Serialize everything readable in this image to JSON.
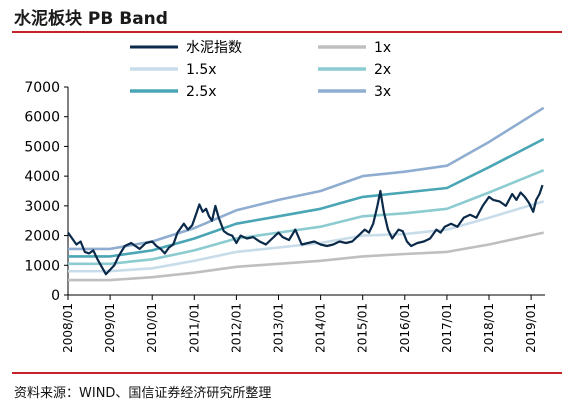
{
  "title": "水泥板块 PB Band",
  "source": "资料来源：WIND、国信证券经济研究所整理",
  "chart_data": {
    "type": "line",
    "title": "水泥板块 PB Band",
    "xlabel": "",
    "ylabel": "",
    "ylim": [
      0,
      7000
    ],
    "yticks": [
      0,
      1000,
      2000,
      3000,
      4000,
      5000,
      6000,
      7000
    ],
    "yticklabels": [
      "0",
      "1000",
      "2000",
      "3000",
      "4000",
      "5000",
      "6000",
      "7000"
    ],
    "xlim": [
      2008.0,
      2019.33
    ],
    "xticks": [
      2008,
      2009,
      2010,
      2011,
      2012,
      2013,
      2014,
      2015,
      2016,
      2017,
      2018,
      2019
    ],
    "xticklabels": [
      "2008/01",
      "2009/01",
      "2010/01",
      "2011/01",
      "2012/01",
      "2013/01",
      "2014/01",
      "2015/01",
      "2016/01",
      "2017/01",
      "2018/01",
      "2019/01"
    ],
    "grid": false,
    "legend_position": "top",
    "series": [
      {
        "name": "水泥指数",
        "color": "#0b2a4a",
        "points": [
          [
            2008.0,
            2100
          ],
          [
            2008.1,
            1900
          ],
          [
            2008.2,
            1700
          ],
          [
            2008.3,
            1800
          ],
          [
            2008.4,
            1450
          ],
          [
            2008.5,
            1400
          ],
          [
            2008.6,
            1500
          ],
          [
            2008.7,
            1200
          ],
          [
            2008.8,
            950
          ],
          [
            2008.9,
            700
          ],
          [
            2009.0,
            850
          ],
          [
            2009.1,
            1000
          ],
          [
            2009.2,
            1300
          ],
          [
            2009.35,
            1650
          ],
          [
            2009.5,
            1750
          ],
          [
            2009.6,
            1650
          ],
          [
            2009.7,
            1550
          ],
          [
            2009.85,
            1750
          ],
          [
            2010.0,
            1800
          ],
          [
            2010.1,
            1650
          ],
          [
            2010.2,
            1550
          ],
          [
            2010.3,
            1400
          ],
          [
            2010.4,
            1600
          ],
          [
            2010.5,
            1700
          ],
          [
            2010.6,
            2100
          ],
          [
            2010.75,
            2400
          ],
          [
            2010.85,
            2200
          ],
          [
            2010.95,
            2350
          ],
          [
            2011.05,
            2750
          ],
          [
            2011.12,
            3050
          ],
          [
            2011.2,
            2800
          ],
          [
            2011.28,
            2900
          ],
          [
            2011.35,
            2650
          ],
          [
            2011.42,
            2500
          ],
          [
            2011.5,
            3000
          ],
          [
            2011.58,
            2600
          ],
          [
            2011.7,
            2150
          ],
          [
            2011.8,
            2050
          ],
          [
            2011.9,
            2000
          ],
          [
            2012.0,
            1750
          ],
          [
            2012.1,
            2000
          ],
          [
            2012.25,
            1900
          ],
          [
            2012.4,
            1950
          ],
          [
            2012.55,
            1800
          ],
          [
            2012.7,
            1700
          ],
          [
            2012.85,
            1900
          ],
          [
            2013.0,
            2100
          ],
          [
            2013.1,
            1950
          ],
          [
            2013.25,
            1850
          ],
          [
            2013.4,
            2200
          ],
          [
            2013.55,
            1700
          ],
          [
            2013.7,
            1750
          ],
          [
            2013.85,
            1800
          ],
          [
            2014.0,
            1700
          ],
          [
            2014.15,
            1650
          ],
          [
            2014.3,
            1700
          ],
          [
            2014.45,
            1800
          ],
          [
            2014.6,
            1750
          ],
          [
            2014.75,
            1800
          ],
          [
            2014.9,
            2000
          ],
          [
            2015.05,
            2200
          ],
          [
            2015.15,
            2100
          ],
          [
            2015.25,
            2400
          ],
          [
            2015.35,
            3000
          ],
          [
            2015.42,
            3500
          ],
          [
            2015.5,
            2800
          ],
          [
            2015.6,
            2200
          ],
          [
            2015.7,
            1900
          ],
          [
            2015.85,
            2200
          ],
          [
            2015.95,
            2150
          ],
          [
            2016.05,
            1800
          ],
          [
            2016.15,
            1650
          ],
          [
            2016.3,
            1750
          ],
          [
            2016.45,
            1800
          ],
          [
            2016.6,
            1900
          ],
          [
            2016.75,
            2200
          ],
          [
            2016.85,
            2100
          ],
          [
            2016.95,
            2300
          ],
          [
            2017.1,
            2400
          ],
          [
            2017.25,
            2300
          ],
          [
            2017.4,
            2600
          ],
          [
            2017.55,
            2700
          ],
          [
            2017.7,
            2600
          ],
          [
            2017.85,
            3000
          ],
          [
            2018.0,
            3300
          ],
          [
            2018.1,
            3200
          ],
          [
            2018.25,
            3150
          ],
          [
            2018.4,
            3000
          ],
          [
            2018.55,
            3400
          ],
          [
            2018.65,
            3200
          ],
          [
            2018.75,
            3450
          ],
          [
            2018.85,
            3300
          ],
          [
            2018.95,
            3100
          ],
          [
            2019.05,
            2800
          ],
          [
            2019.12,
            3200
          ],
          [
            2019.2,
            3400
          ],
          [
            2019.27,
            3700
          ]
        ]
      },
      {
        "name": "1x",
        "color": "#bfbfbf",
        "points": [
          [
            2008.0,
            500
          ],
          [
            2009.0,
            500
          ],
          [
            2010.0,
            600
          ],
          [
            2011.0,
            750
          ],
          [
            2012.0,
            950
          ],
          [
            2013.0,
            1050
          ],
          [
            2014.0,
            1150
          ],
          [
            2015.0,
            1300
          ],
          [
            2016.0,
            1380
          ],
          [
            2017.0,
            1450
          ],
          [
            2018.0,
            1700
          ],
          [
            2019.3,
            2100
          ]
        ]
      },
      {
        "name": "1.5x",
        "color": "#c8dcea",
        "points": [
          [
            2008.0,
            800
          ],
          [
            2009.0,
            800
          ],
          [
            2010.0,
            900
          ],
          [
            2011.0,
            1150
          ],
          [
            2012.0,
            1450
          ],
          [
            2013.0,
            1600
          ],
          [
            2014.0,
            1750
          ],
          [
            2015.0,
            2000
          ],
          [
            2016.0,
            2050
          ],
          [
            2017.0,
            2200
          ],
          [
            2018.0,
            2600
          ],
          [
            2019.3,
            3150
          ]
        ]
      },
      {
        "name": "2x",
        "color": "#8ccbd0",
        "points": [
          [
            2008.0,
            1050
          ],
          [
            2009.0,
            1050
          ],
          [
            2010.0,
            1200
          ],
          [
            2011.0,
            1500
          ],
          [
            2012.0,
            1900
          ],
          [
            2013.0,
            2100
          ],
          [
            2014.0,
            2300
          ],
          [
            2015.0,
            2650
          ],
          [
            2016.0,
            2750
          ],
          [
            2017.0,
            2900
          ],
          [
            2018.0,
            3450
          ],
          [
            2019.3,
            4200
          ]
        ]
      },
      {
        "name": "2.5x",
        "color": "#4aa5b5",
        "points": [
          [
            2008.0,
            1300
          ],
          [
            2009.0,
            1300
          ],
          [
            2010.0,
            1500
          ],
          [
            2011.0,
            1900
          ],
          [
            2012.0,
            2400
          ],
          [
            2013.0,
            2650
          ],
          [
            2014.0,
            2900
          ],
          [
            2015.0,
            3300
          ],
          [
            2016.0,
            3450
          ],
          [
            2017.0,
            3600
          ],
          [
            2018.0,
            4300
          ],
          [
            2019.3,
            5250
          ]
        ]
      },
      {
        "name": "3x",
        "color": "#8fadd0",
        "points": [
          [
            2008.0,
            1550
          ],
          [
            2009.0,
            1550
          ],
          [
            2010.0,
            1800
          ],
          [
            2011.0,
            2250
          ],
          [
            2012.0,
            2850
          ],
          [
            2013.0,
            3200
          ],
          [
            2014.0,
            3500
          ],
          [
            2015.0,
            4000
          ],
          [
            2016.0,
            4150
          ],
          [
            2017.0,
            4350
          ],
          [
            2018.0,
            5150
          ],
          [
            2019.3,
            6300
          ]
        ]
      }
    ]
  }
}
